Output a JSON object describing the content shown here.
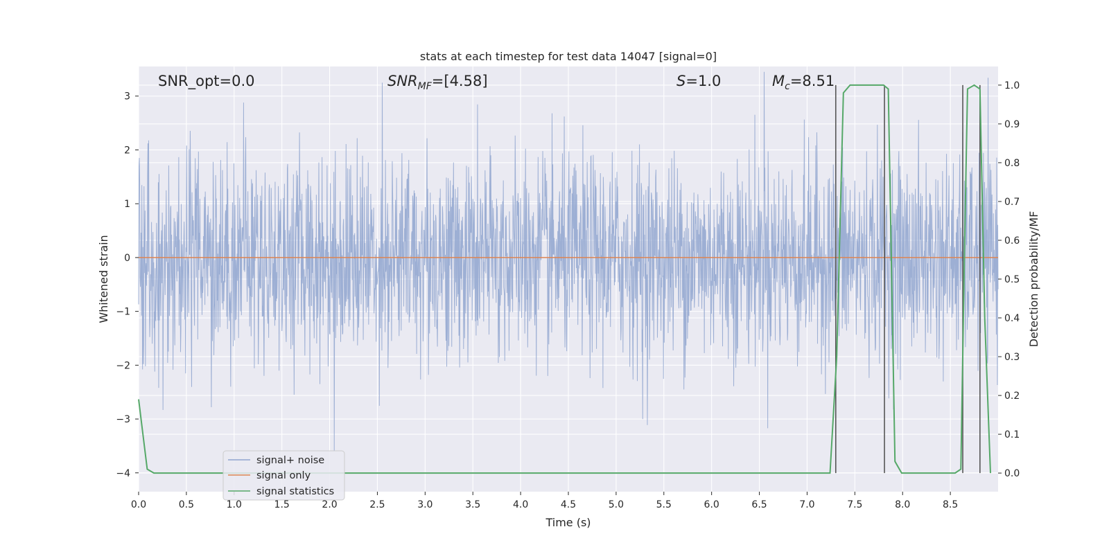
{
  "chart_data": {
    "type": "line",
    "title": "stats at each timestep for test data 14047 [signal=0]",
    "xlabel": "Time (s)",
    "ylabel": "Whitened strain",
    "ylabel_right": "Detection probability/MF",
    "xlim": [
      0.0,
      9.0
    ],
    "ylim": [
      -4.35,
      3.55
    ],
    "ylim_right": [
      -0.048,
      1.048
    ],
    "x_ticks": [
      "0.0",
      "0.5",
      "1.0",
      "1.5",
      "2.0",
      "2.5",
      "3.0",
      "3.5",
      "4.0",
      "4.5",
      "5.0",
      "5.5",
      "6.0",
      "6.5",
      "7.0",
      "7.5",
      "8.0",
      "8.5"
    ],
    "y_ticks": [
      "3",
      "2",
      "1",
      "0",
      "−1",
      "−2",
      "−3",
      "−4"
    ],
    "y_right_ticks": [
      "1.0",
      "0.9",
      "0.8",
      "0.7",
      "0.6",
      "0.5",
      "0.4",
      "0.3",
      "0.2",
      "0.1",
      "0.0"
    ],
    "grid": true,
    "legend_position": "lower-left",
    "annotations": {
      "snr_opt": "SNR_opt=0.0",
      "snr_mf_lhs": "SNR",
      "snr_mf_sub": "MF",
      "snr_mf_rhs": "=[4.58]",
      "s_lhs": "S",
      "s_rhs": "=1.0",
      "mc_lhs": "M",
      "mc_sub": "c",
      "mc_rhs": "=8.51"
    },
    "series": [
      {
        "name": "signal+ noise",
        "axis": "left",
        "color": "#8fa5cf",
        "description_values": "dense noise, mostly within [-1.5, 1.5] with spikes up to 3.4 and down to -3.6",
        "approx_envelope": {
          "typical_low": -1.5,
          "typical_high": 1.5,
          "max": 3.45,
          "min": -3.6
        },
        "notable_spikes": [
          {
            "x": 2.05,
            "y": -3.6
          },
          {
            "x": 2.55,
            "y": 3.25
          },
          {
            "x": 6.55,
            "y": 3.45
          },
          {
            "x": 1.1,
            "y": 2.88
          },
          {
            "x": 5.28,
            "y": -3.0
          },
          {
            "x": 0.76,
            "y": -2.78
          }
        ]
      },
      {
        "name": "signal only",
        "axis": "left",
        "color": "#dd8452",
        "x": [
          0.0,
          9.0
        ],
        "y": [
          0.0,
          0.0
        ]
      },
      {
        "name": "signal statistics",
        "axis": "right",
        "color": "#55a868",
        "x": [
          0.0,
          0.09,
          0.16,
          7.24,
          7.31,
          7.38,
          7.45,
          7.55,
          7.8,
          7.85,
          7.92,
          7.99,
          8.55,
          8.61,
          8.65,
          8.68,
          8.75,
          8.81,
          8.86,
          8.92
        ],
        "y": [
          0.19,
          0.01,
          0.0,
          0.0,
          0.3,
          0.98,
          1.0,
          1.0,
          1.0,
          0.99,
          0.03,
          0.0,
          0.0,
          0.01,
          0.6,
          0.99,
          1.0,
          0.99,
          0.4,
          0.0
        ]
      }
    ],
    "vertical_markers": [
      7.3,
      7.81,
      8.63,
      8.81
    ]
  }
}
